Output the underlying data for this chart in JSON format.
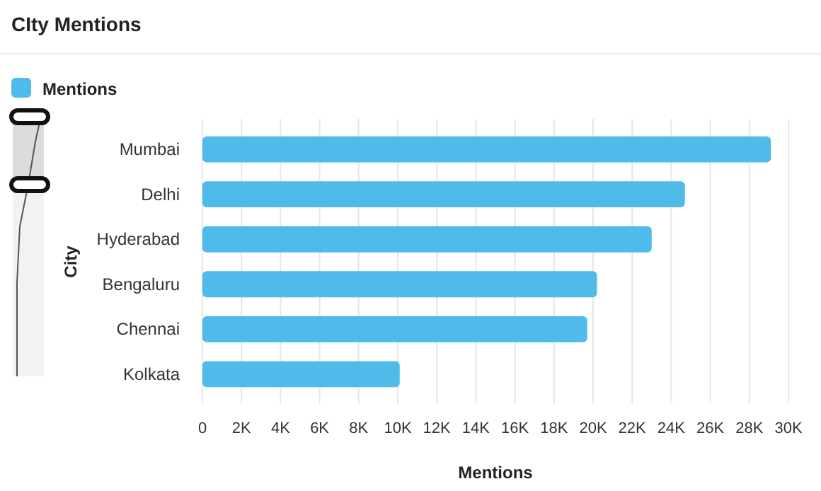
{
  "chart_data": {
    "type": "bar",
    "orientation": "horizontal",
    "title": "CIty Mentions",
    "xlabel": "Mentions",
    "ylabel": "City",
    "categories": [
      "Mumbai",
      "Delhi",
      "Hyderabad",
      "Bengaluru",
      "Chennai",
      "Kolkata"
    ],
    "series": [
      {
        "name": "Mentions",
        "color": "#4fbbeb",
        "values": [
          29100,
          24700,
          23000,
          20200,
          19700,
          10100
        ]
      }
    ],
    "xlim": [
      0,
      30000
    ],
    "xticks": [
      {
        "value": 0,
        "label": "0"
      },
      {
        "value": 2000,
        "label": "2K"
      },
      {
        "value": 4000,
        "label": "4K"
      },
      {
        "value": 6000,
        "label": "6K"
      },
      {
        "value": 8000,
        "label": "8K"
      },
      {
        "value": 10000,
        "label": "10K"
      },
      {
        "value": 12000,
        "label": "12K"
      },
      {
        "value": 14000,
        "label": "14K"
      },
      {
        "value": 16000,
        "label": "16K"
      },
      {
        "value": 18000,
        "label": "18K"
      },
      {
        "value": 20000,
        "label": "20K"
      },
      {
        "value": 22000,
        "label": "22K"
      },
      {
        "value": 24000,
        "label": "24K"
      },
      {
        "value": 26000,
        "label": "26K"
      },
      {
        "value": 28000,
        "label": "28K"
      },
      {
        "value": 30000,
        "label": "30K"
      }
    ],
    "grid": "x",
    "legend": "top left"
  }
}
